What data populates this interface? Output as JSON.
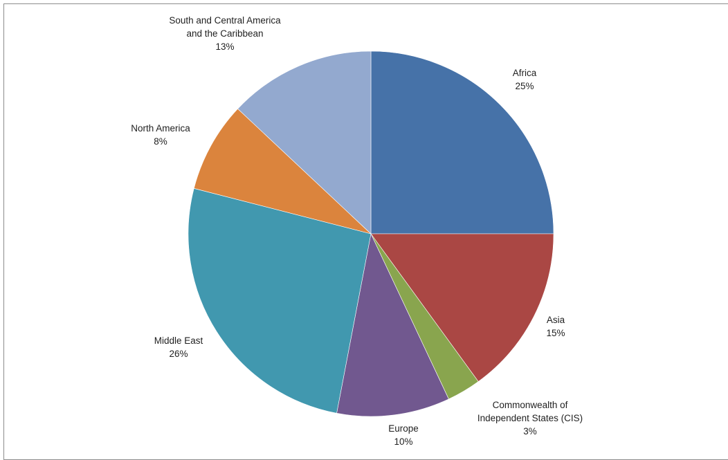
{
  "chart_data": {
    "type": "pie",
    "title": "",
    "legend": "none",
    "slices": [
      {
        "name": "Africa",
        "value": 25,
        "label": [
          "Africa"
        ],
        "pct_label": "25%",
        "color": "#4672a8"
      },
      {
        "name": "Asia",
        "value": 15,
        "label": [
          "Asia"
        ],
        "pct_label": "15%",
        "color": "#aa4744"
      },
      {
        "name": "Commonwealth of Independent States (CIS)",
        "value": 3,
        "label": [
          "Commonwealth of",
          "Independent States (CIS)"
        ],
        "pct_label": "3%",
        "color": "#89a54e"
      },
      {
        "name": "Europe",
        "value": 10,
        "label": [
          "Europe"
        ],
        "pct_label": "10%",
        "color": "#71588f"
      },
      {
        "name": "Middle East",
        "value": 26,
        "label": [
          "Middle East"
        ],
        "pct_label": "26%",
        "color": "#4198af"
      },
      {
        "name": "North America",
        "value": 8,
        "label": [
          "North America"
        ],
        "pct_label": "8%",
        "color": "#db843d"
      },
      {
        "name": "South and Central America and the Caribbean",
        "value": 13,
        "label": [
          "South and Central America",
          "and the Caribbean"
        ],
        "pct_label": "13%",
        "color": "#93a9cf"
      }
    ]
  }
}
